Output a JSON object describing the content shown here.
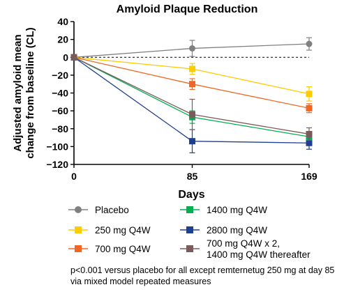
{
  "chart_data": {
    "type": "line",
    "title": "Amyloid Plaque Reduction",
    "xlabel": "Days",
    "ylabel": "Adjusted amyloid mean change from baseline (CL)",
    "x": [
      0,
      85,
      169
    ],
    "x_ticks": [
      "0",
      "85",
      "169"
    ],
    "ylim": [
      -120,
      40
    ],
    "y_ticks": [
      "40",
      "20",
      "0",
      "−20",
      "−40",
      "−60",
      "−80",
      "−100",
      "−120"
    ],
    "reference_line_y": 0,
    "legend_position": "bottom",
    "grid": false,
    "series": [
      {
        "name": "Placebo",
        "values": [
          0,
          10,
          15
        ],
        "err": [
          0,
          9,
          7
        ],
        "color": "#808080",
        "marker": "circle"
      },
      {
        "name": "250 mg Q4W",
        "values": [
          0,
          -13,
          -41
        ],
        "err": [
          0,
          6,
          8
        ],
        "color": "#ffcc00",
        "marker": "square"
      },
      {
        "name": "700 mg Q4W",
        "values": [
          0,
          -30,
          -57
        ],
        "err": [
          0,
          6,
          5
        ],
        "color": "#f26522",
        "marker": "square"
      },
      {
        "name": "1400 mg Q4W",
        "values": [
          0,
          -67,
          -89
        ],
        "err": [
          0,
          7,
          6
        ],
        "color": "#00b050",
        "marker": "square"
      },
      {
        "name": "2800 mg Q4W",
        "values": [
          0,
          -94,
          -96
        ],
        "err": [
          0,
          13,
          7
        ],
        "color": "#1f3f8f",
        "marker": "square"
      },
      {
        "name": "700 mg Q4W x 2,\n1400 mg Q4W thereafter",
        "values": [
          0,
          -64,
          -86
        ],
        "err": [
          0,
          17,
          7
        ],
        "color": "#7a5b5b",
        "marker": "square"
      }
    ]
  },
  "footnote": "p<0.001 versus placebo for all except remternetug 250 mg at day 85 via mixed model repeated measures"
}
